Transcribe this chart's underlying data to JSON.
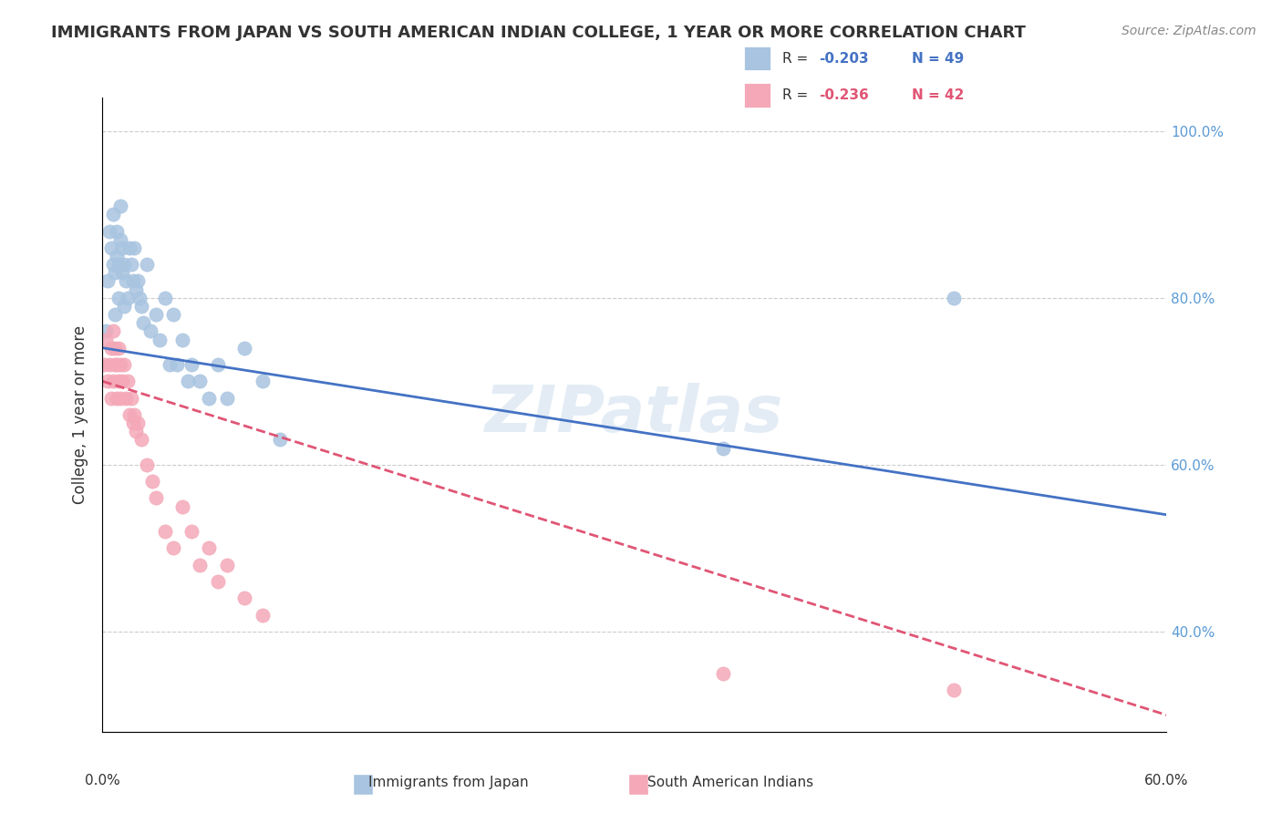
{
  "title": "IMMIGRANTS FROM JAPAN VS SOUTH AMERICAN INDIAN COLLEGE, 1 YEAR OR MORE CORRELATION CHART",
  "source": "Source: ZipAtlas.com",
  "ylabel": "College, 1 year or more",
  "right_yticks": [
    "40.0%",
    "60.0%",
    "80.0%",
    "100.0%"
  ],
  "right_ytick_vals": [
    0.4,
    0.6,
    0.8,
    1.0
  ],
  "blue_color": "#a8c4e0",
  "pink_color": "#f4a8b8",
  "blue_line_color": "#4472c4",
  "pink_line_color": "#e05575",
  "blue_scatter_x": [
    0.002,
    0.003,
    0.004,
    0.005,
    0.006,
    0.006,
    0.007,
    0.007,
    0.008,
    0.008,
    0.009,
    0.009,
    0.01,
    0.01,
    0.011,
    0.011,
    0.012,
    0.012,
    0.013,
    0.014,
    0.015,
    0.016,
    0.017,
    0.018,
    0.019,
    0.02,
    0.021,
    0.022,
    0.023,
    0.025,
    0.027,
    0.03,
    0.032,
    0.035,
    0.038,
    0.04,
    0.042,
    0.045,
    0.048,
    0.05,
    0.055,
    0.06,
    0.065,
    0.07,
    0.08,
    0.09,
    0.1,
    0.35,
    0.48
  ],
  "blue_scatter_y": [
    0.76,
    0.82,
    0.88,
    0.86,
    0.84,
    0.9,
    0.78,
    0.83,
    0.85,
    0.88,
    0.8,
    0.84,
    0.87,
    0.91,
    0.83,
    0.86,
    0.79,
    0.84,
    0.82,
    0.8,
    0.86,
    0.84,
    0.82,
    0.86,
    0.81,
    0.82,
    0.8,
    0.79,
    0.77,
    0.84,
    0.76,
    0.78,
    0.75,
    0.8,
    0.72,
    0.78,
    0.72,
    0.75,
    0.7,
    0.72,
    0.7,
    0.68,
    0.72,
    0.68,
    0.74,
    0.7,
    0.63,
    0.62,
    0.8
  ],
  "pink_scatter_x": [
    0.001,
    0.002,
    0.003,
    0.004,
    0.005,
    0.005,
    0.006,
    0.006,
    0.007,
    0.007,
    0.008,
    0.008,
    0.009,
    0.009,
    0.01,
    0.01,
    0.011,
    0.012,
    0.013,
    0.014,
    0.015,
    0.016,
    0.017,
    0.018,
    0.019,
    0.02,
    0.022,
    0.025,
    0.028,
    0.03,
    0.035,
    0.04,
    0.045,
    0.05,
    0.055,
    0.06,
    0.065,
    0.07,
    0.08,
    0.09,
    0.35,
    0.48
  ],
  "pink_scatter_y": [
    0.72,
    0.75,
    0.7,
    0.72,
    0.68,
    0.74,
    0.7,
    0.76,
    0.72,
    0.74,
    0.68,
    0.72,
    0.7,
    0.74,
    0.72,
    0.68,
    0.7,
    0.72,
    0.68,
    0.7,
    0.66,
    0.68,
    0.65,
    0.66,
    0.64,
    0.65,
    0.63,
    0.6,
    0.58,
    0.56,
    0.52,
    0.5,
    0.55,
    0.52,
    0.48,
    0.5,
    0.46,
    0.48,
    0.44,
    0.42,
    0.35,
    0.33
  ],
  "xlim": [
    0.0,
    0.6
  ],
  "ylim": [
    0.28,
    1.04
  ],
  "blue_trend_x": [
    0.0,
    0.6
  ],
  "blue_trend_y": [
    0.74,
    0.54
  ],
  "pink_trend_x": [
    0.0,
    0.6
  ],
  "pink_trend_y": [
    0.7,
    0.3
  ]
}
